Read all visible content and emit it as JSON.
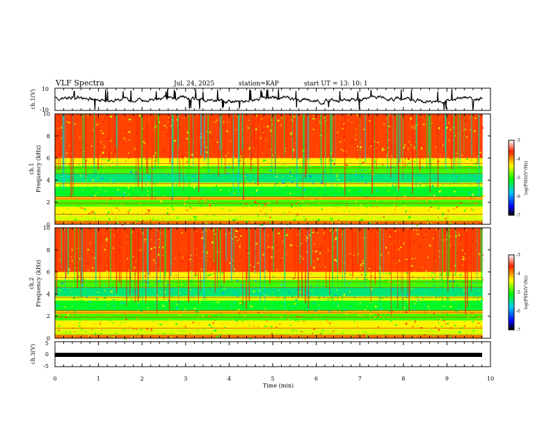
{
  "header": {
    "title": "VLF Spectra",
    "date": "Jul. 24, 2025",
    "station": "station=KAP",
    "start": "start UT =  13: 10: 1"
  },
  "chart_data": [
    {
      "type": "line",
      "name": "ch1-waveform",
      "ylabel": "ch.1(V)",
      "ylim": [
        -10,
        10
      ],
      "ytick_labels": [
        "10",
        "-10"
      ],
      "xlim": [
        0,
        10
      ]
    },
    {
      "type": "heatmap",
      "name": "ch1-spectrogram",
      "ylabel_line1": "ch.1",
      "ylabel_line2": "Frequency (kHz)",
      "ylim": [
        0,
        10
      ],
      "ytick_labels": [
        "0",
        "2",
        "4",
        "6",
        "8",
        "10"
      ],
      "xlim": [
        0,
        9.8
      ],
      "colorbar": {
        "label": "log(PSD)(V²/Hz)",
        "range": [
          -7,
          -3
        ],
        "tick_labels": [
          "-3",
          "-4",
          "-5",
          "-6",
          "-7"
        ]
      }
    },
    {
      "type": "heatmap",
      "name": "ch2-spectrogram",
      "ylabel_line1": "ch.2",
      "ylabel_line2": "Frequency (kHz)",
      "ylim": [
        0,
        10
      ],
      "ytick_labels": [
        "0",
        "2",
        "4",
        "6",
        "8",
        "10"
      ],
      "xlim": [
        0,
        9.8
      ],
      "colorbar": {
        "label": "log(PSD)(V²/Hz)",
        "range": [
          -7,
          -3
        ],
        "tick_labels": [
          "-3",
          "-4",
          "-5",
          "-6",
          "-7"
        ]
      }
    },
    {
      "type": "line",
      "name": "ch3-waveform",
      "ylabel": "ch.3(V)",
      "ylim": [
        -5,
        5
      ],
      "ytick_labels": [
        "5",
        "0",
        "-5"
      ],
      "xlim": [
        0,
        10
      ]
    }
  ],
  "xaxis": {
    "label": "Time (min)",
    "tick_labels": [
      "0",
      "1",
      "2",
      "3",
      "4",
      "5",
      "6",
      "7",
      "8",
      "9",
      "10"
    ]
  },
  "colors": {
    "high": "#ff2200",
    "mid": "#00ff00",
    "low": "#0000ff"
  }
}
